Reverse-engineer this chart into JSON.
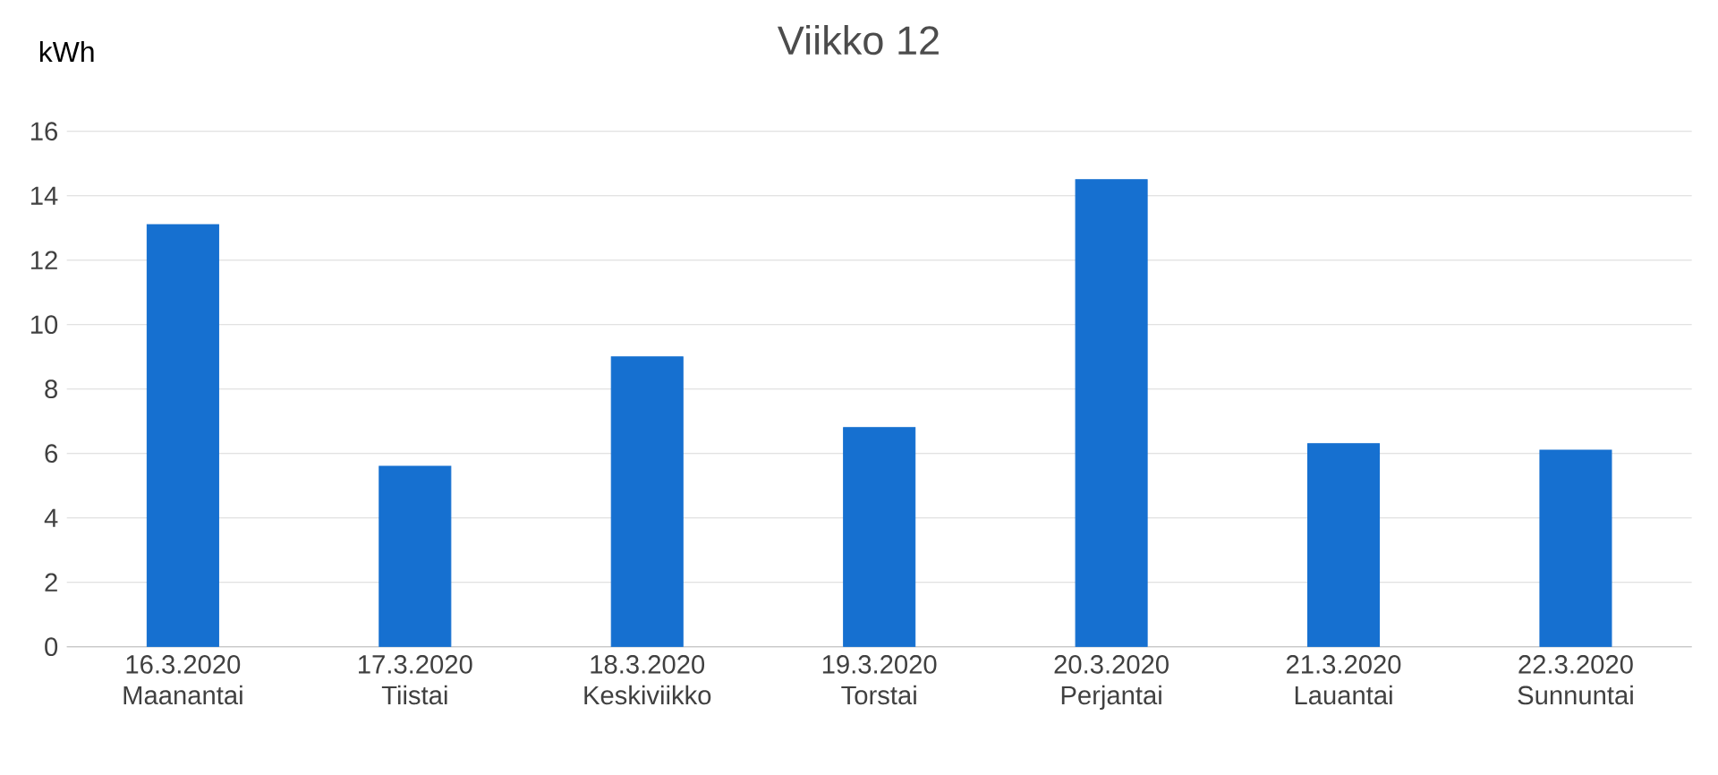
{
  "chart_data": {
    "type": "bar",
    "title": "Viikko 12",
    "ylabel": "kWh",
    "categories": [
      "16.3.2020 Maanantai",
      "17.3.2020 Tiistai",
      "18.3.2020 Keskiviikko",
      "19.3.2020 Torstai",
      "20.3.2020 Perjantai",
      "21.3.2020 Lauantai",
      "22.3.2020 Sunnuntai"
    ],
    "values": [
      13.1,
      5.6,
      9.0,
      6.8,
      14.5,
      6.3,
      6.1
    ],
    "color": "#1670d0",
    "ylim": [
      0,
      16
    ],
    "yticks": [
      0,
      2,
      4,
      6,
      8,
      10,
      12,
      14,
      16
    ],
    "grid": "y"
  }
}
